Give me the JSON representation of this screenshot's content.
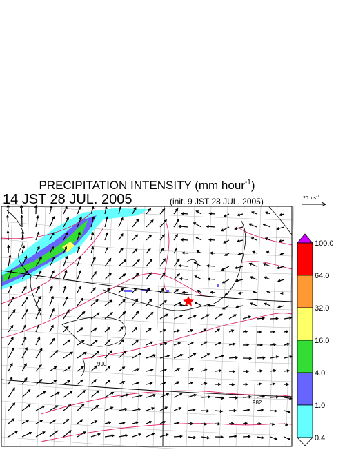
{
  "header": {
    "title": "PRECIPITATION INTENSITY (mm hour",
    "title_sup": "-1",
    "title_end": ")",
    "valid_time": "14 JST 28 JUL. 2005",
    "init": "(init. 9 JST 28 JUL. 2005)"
  },
  "reference_vector": {
    "label": "20 ms",
    "label_sup": "-1"
  },
  "colorbar": {
    "labels": [
      "100.0",
      "64.0",
      "32.0",
      "16.0",
      "4.0",
      "1.0",
      "0.4"
    ],
    "colors": [
      "#ff0000",
      "#ff9933",
      "#ffff66",
      "#33dd33",
      "#6666ff",
      "#66ffff"
    ],
    "over_color": "#cc00ff",
    "under_color": "#ffffff"
  },
  "contour_labels": [
    "990",
    "982"
  ]
}
